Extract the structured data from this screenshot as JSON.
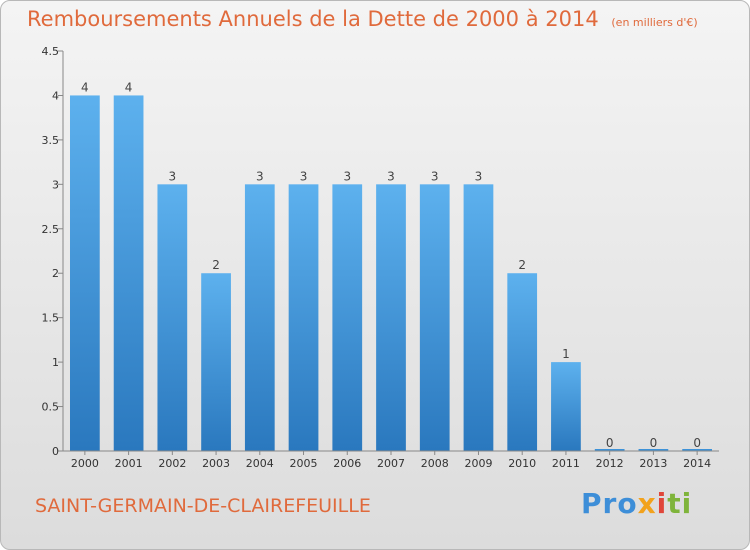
{
  "title": "Remboursements Annuels de la Dette de 2000 à 2014",
  "subtitle": "(en milliers d'€)",
  "commune": "SAINT-GERMAIN-DE-CLAIREFEUILLE",
  "logo": {
    "p1": "Pro",
    "p2": "x",
    "p3": "i",
    "p4": "ti"
  },
  "colors": {
    "bar": "#3d92d8",
    "title": "#e06a3c"
  },
  "chart_data": {
    "type": "bar",
    "categories": [
      "2000",
      "2001",
      "2002",
      "2003",
      "2004",
      "2005",
      "2006",
      "2007",
      "2008",
      "2009",
      "2010",
      "2011",
      "2012",
      "2013",
      "2014"
    ],
    "values": [
      4,
      4,
      3,
      2,
      3,
      3,
      3,
      3,
      3,
      3,
      2,
      1,
      0,
      0,
      0
    ],
    "data_labels": [
      "4",
      "4",
      "3",
      "2",
      "3",
      "3",
      "3",
      "3",
      "3",
      "3",
      "2",
      "1",
      "0",
      "0",
      "0"
    ],
    "y_ticks": [
      0,
      0.5,
      1,
      1.5,
      2,
      2.5,
      3,
      3.5,
      4,
      4.5
    ],
    "y_tick_labels": [
      "0",
      "0.5",
      "1",
      "1.5",
      "2",
      "2.5",
      "3",
      "3.5",
      "4",
      "4.5"
    ],
    "ylim": [
      0,
      4.5
    ],
    "grid": false,
    "legend": "none"
  }
}
